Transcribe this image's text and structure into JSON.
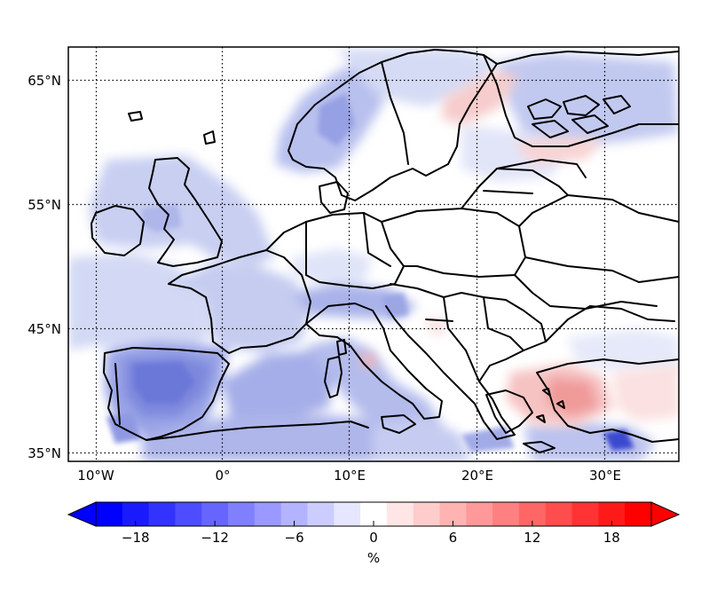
{
  "map": {
    "lat_labels": [
      "65°N",
      "55°N",
      "45°N",
      "35°N"
    ],
    "lon_labels": [
      "10°W",
      "0°",
      "10°E",
      "20°E",
      "30°E"
    ],
    "lat_values": [
      65,
      55,
      45,
      35
    ],
    "lon_values": [
      -10,
      0,
      10,
      20,
      30
    ],
    "extent": {
      "lon_min": -12.2,
      "lon_max": 36.3,
      "lat_min": 34.3,
      "lat_max": 67.7
    },
    "gridlines": "dotted",
    "field_pattern": "mostly negative (blue) over western Europe, Iberia, Mediterranean and North Sea; positive (red) over western Turkey, Aegean and Gulf of Bothnia coast",
    "palette": {
      "negative_max": "#0000ff",
      "neutral": "#ffffff",
      "positive_max": "#ff0000"
    }
  },
  "colorbar": {
    "ticks": [
      "−18",
      "−12",
      "−6",
      "0",
      "6",
      "12",
      "18"
    ],
    "tick_values": [
      -18,
      -12,
      -6,
      0,
      6,
      12,
      18
    ],
    "range": [
      -21,
      21
    ],
    "step": 2,
    "unit": "%",
    "extend": "both"
  }
}
